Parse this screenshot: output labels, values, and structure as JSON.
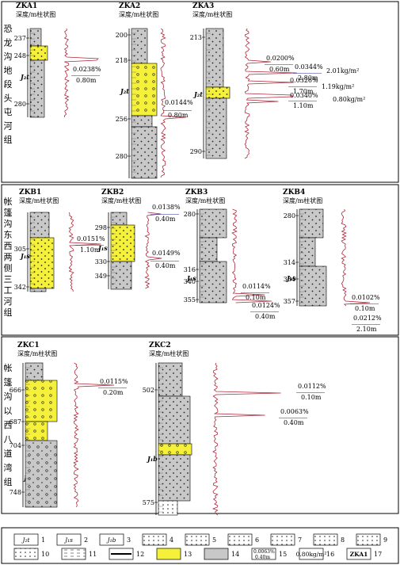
{
  "sections": [
    {
      "label": "恐龙沟地段头屯河组"
    },
    {
      "label": "帐篷沟东西两侧三工河组"
    },
    {
      "label": "帐篷沟以西八道湾组"
    }
  ],
  "columns": [
    {
      "name": "ZKA1",
      "subtitle": "深度/m柱状图",
      "depths": [
        "237",
        "248",
        "280"
      ],
      "formation": "J₂t",
      "annotations": [
        {
          "pct": "0.0238%",
          "thick": "0.80m"
        }
      ]
    },
    {
      "name": "ZKA2",
      "subtitle": "深度/m柱状图",
      "depths": [
        "200",
        "218",
        "256",
        "280"
      ],
      "formation": "J₂t",
      "annotations": [
        {
          "pct": "0.0144%",
          "thick": "0.80m"
        }
      ]
    },
    {
      "name": "ZKA3",
      "subtitle": "深度/m柱状图",
      "depths": [
        "213",
        "290"
      ],
      "formation": "J₂t",
      "annotations": [
        {
          "pct": "0.0200%",
          "thick": "0.60m"
        },
        {
          "pct": "0.0344%",
          "thick": "2.80m"
        },
        {
          "pct": "0.0326%",
          "thick": "1.70m"
        },
        {
          "pct": "0.0340%",
          "thick": "1.10m"
        }
      ],
      "density": [
        "2.01kg/m²",
        "1.19kg/m²",
        "0.80kg/m²"
      ]
    },
    {
      "name": "ZKB1",
      "subtitle": "深度/m柱状图",
      "depths": [
        "305",
        "342"
      ],
      "formation": "J₁s",
      "annotations": [
        {
          "pct": "0.0151%",
          "thick": "1.10m"
        }
      ]
    },
    {
      "name": "ZKB2",
      "subtitle": "深度/m柱状图",
      "depths": [
        "298",
        "330",
        "349"
      ],
      "formation": "J₁s",
      "annotations": [
        {
          "pct": "0.0138%",
          "thick": "0.40m"
        },
        {
          "pct": "0.0149%",
          "thick": "0.40m"
        }
      ]
    },
    {
      "name": "ZKB3",
      "subtitle": "深度/m柱状图",
      "depths": [
        "280",
        "316",
        "340",
        "355"
      ],
      "formation": "J₁s",
      "annotations": [
        {
          "pct": "0.0114%",
          "thick": "0.10m"
        },
        {
          "pct": "0.0124%",
          "thick": "0.40m"
        }
      ]
    },
    {
      "name": "ZKB4",
      "subtitle": "深度/m柱状图",
      "depths": [
        "280",
        "314",
        "334",
        "357"
      ],
      "formation": "J₁s",
      "annotations": [
        {
          "pct": "0.0102%",
          "thick": "0.10m"
        },
        {
          "pct": "0.0212%",
          "thick": "2.10m"
        }
      ]
    },
    {
      "name": "ZKC1",
      "subtitle": "深度/m柱状图",
      "depths": [
        "666",
        "687",
        "704",
        "748"
      ],
      "formation": "J₁b",
      "annotations": [
        {
          "pct": "0.0115%",
          "thick": "0.20m"
        }
      ]
    },
    {
      "name": "ZKC2",
      "subtitle": "深度/m柱状图",
      "depths": [
        "502",
        "575"
      ],
      "formation": "J₁b",
      "annotations": [
        {
          "pct": "0.0112%",
          "thick": "0.10m"
        },
        {
          "pct": "0.0063%",
          "thick": "0.40m"
        }
      ]
    }
  ],
  "legend": {
    "items": [
      {
        "num": "1",
        "label": "J₂t"
      },
      {
        "num": "2",
        "label": "J₁s"
      },
      {
        "num": "3",
        "label": "J₁b"
      },
      {
        "num": "4"
      },
      {
        "num": "5"
      },
      {
        "num": "6"
      },
      {
        "num": "7"
      },
      {
        "num": "8"
      },
      {
        "num": "9"
      },
      {
        "num": "10"
      },
      {
        "num": "11"
      },
      {
        "num": "12"
      },
      {
        "num": "13"
      },
      {
        "num": "14"
      },
      {
        "num": "15",
        "pct": "0.0063%",
        "thick": "0.40m"
      },
      {
        "num": "16",
        "label": "0.80kg/m²"
      },
      {
        "num": "17",
        "label": "ZKA1"
      }
    ]
  },
  "colors": {
    "yellow": "#f5f03a",
    "gray": "#c8c8c8",
    "curve": "#b0283a",
    "annot": "#2a2a9a",
    "density": "#c01818"
  }
}
